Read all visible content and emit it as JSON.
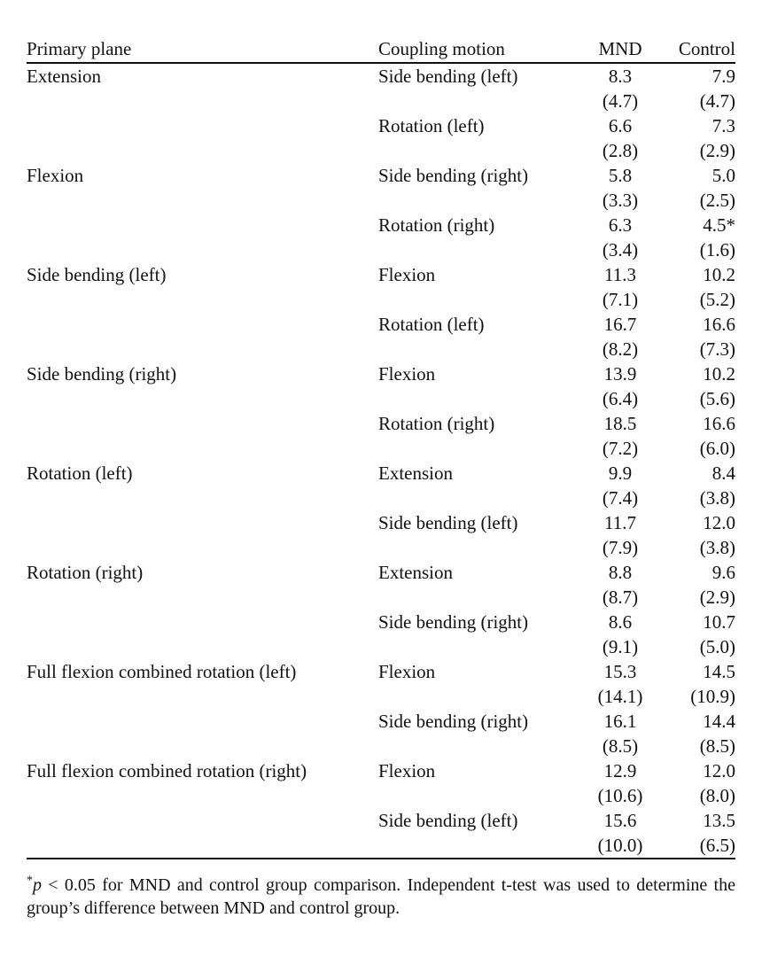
{
  "table": {
    "headers": {
      "primary": "Primary plane",
      "coupling": "Coupling motion",
      "mnd": "MND",
      "control": "Control"
    },
    "rows": [
      {
        "primary": "Extension",
        "coupling": "Side bending (left)",
        "mnd": "8.3",
        "control": "7.9"
      },
      {
        "primary": "",
        "coupling": "",
        "mnd": "(4.7)",
        "control": "(4.7)"
      },
      {
        "primary": "",
        "coupling": "Rotation (left)",
        "mnd": "6.6",
        "control": "7.3"
      },
      {
        "primary": "",
        "coupling": "",
        "mnd": "(2.8)",
        "control": "(2.9)"
      },
      {
        "primary": "Flexion",
        "coupling": "Side bending (right)",
        "mnd": "5.8",
        "control": "5.0"
      },
      {
        "primary": "",
        "coupling": "",
        "mnd": "(3.3)",
        "control": "(2.5)"
      },
      {
        "primary": "",
        "coupling": "Rotation (right)",
        "mnd": "6.3",
        "control": "4.5*"
      },
      {
        "primary": "",
        "coupling": "",
        "mnd": "(3.4)",
        "control": "(1.6)"
      },
      {
        "primary": "Side bending (left)",
        "coupling": "Flexion",
        "mnd": "11.3",
        "control": "10.2"
      },
      {
        "primary": "",
        "coupling": "",
        "mnd": "(7.1)",
        "control": "(5.2)"
      },
      {
        "primary": "",
        "coupling": "Rotation (left)",
        "mnd": "16.7",
        "control": "16.6"
      },
      {
        "primary": "",
        "coupling": "",
        "mnd": "(8.2)",
        "control": "(7.3)"
      },
      {
        "primary": "Side bending (right)",
        "coupling": "Flexion",
        "mnd": "13.9",
        "control": "10.2"
      },
      {
        "primary": "",
        "coupling": "",
        "mnd": "(6.4)",
        "control": "(5.6)"
      },
      {
        "primary": "",
        "coupling": "Rotation (right)",
        "mnd": "18.5",
        "control": "16.6"
      },
      {
        "primary": "",
        "coupling": "",
        "mnd": "(7.2)",
        "control": "(6.0)"
      },
      {
        "primary": "Rotation (left)",
        "coupling": "Extension",
        "mnd": "9.9",
        "control": "8.4"
      },
      {
        "primary": "",
        "coupling": "",
        "mnd": "(7.4)",
        "control": "(3.8)"
      },
      {
        "primary": "",
        "coupling": "Side bending (left)",
        "mnd": "11.7",
        "control": "12.0"
      },
      {
        "primary": "",
        "coupling": "",
        "mnd": "(7.9)",
        "control": "(3.8)"
      },
      {
        "primary": "Rotation (right)",
        "coupling": "Extension",
        "mnd": "8.8",
        "control": "9.6"
      },
      {
        "primary": "",
        "coupling": "",
        "mnd": "(8.7)",
        "control": "(2.9)"
      },
      {
        "primary": "",
        "coupling": "Side bending (right)",
        "mnd": "8.6",
        "control": "10.7"
      },
      {
        "primary": "",
        "coupling": "",
        "mnd": "(9.1)",
        "control": "(5.0)"
      },
      {
        "primary": "Full flexion combined rotation (left)",
        "coupling": "Flexion",
        "mnd": "15.3",
        "control": "14.5"
      },
      {
        "primary": "",
        "coupling": "",
        "mnd": "(14.1)",
        "control": "(10.9)"
      },
      {
        "primary": "",
        "coupling": "Side bending (right)",
        "mnd": "16.1",
        "control": "14.4"
      },
      {
        "primary": "",
        "coupling": "",
        "mnd": "(8.5)",
        "control": "(8.5)"
      },
      {
        "primary": "Full flexion combined rotation (right)",
        "coupling": "Flexion",
        "mnd": "12.9",
        "control": "12.0"
      },
      {
        "primary": "",
        "coupling": "",
        "mnd": "(10.6)",
        "control": "(8.0)"
      },
      {
        "primary": "",
        "coupling": "Side bending (left)",
        "mnd": "15.6",
        "control": "13.5"
      },
      {
        "primary": "",
        "coupling": "",
        "mnd": "(10.0)",
        "control": "(6.5)"
      }
    ]
  },
  "footnote": {
    "star": "*",
    "p": "p",
    "text": " < 0.05 for MND and control group comparison. Independent t-test was used to determine the group’s difference between MND and control group."
  }
}
